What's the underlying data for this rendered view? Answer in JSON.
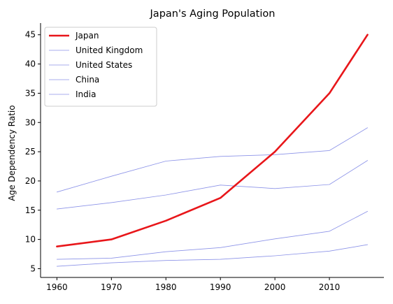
{
  "chart_data": {
    "type": "line",
    "title": "Japan's Aging Population",
    "xlabel": "",
    "ylabel": "Age Dependency Ratio",
    "x": [
      1960,
      1970,
      1980,
      1990,
      2000,
      2010,
      2017
    ],
    "xlim": [
      1957,
      2020
    ],
    "ylim": [
      3.5,
      47
    ],
    "xticks": [
      1960,
      1970,
      1980,
      1990,
      2000,
      2010
    ],
    "yticks": [
      5,
      10,
      15,
      20,
      25,
      30,
      35,
      40,
      45
    ],
    "grid": false,
    "legend": "top-left",
    "series": [
      {
        "name": "Japan",
        "color": "#e8161a",
        "emphasis": true,
        "values": [
          8.8,
          10.0,
          13.2,
          17.1,
          25.0,
          35.0,
          45.0
        ]
      },
      {
        "name": "United Kingdom",
        "color": "#8c93e8",
        "emphasis": false,
        "values": [
          18.1,
          20.8,
          23.4,
          24.2,
          24.5,
          25.2,
          29.1
        ]
      },
      {
        "name": "United States",
        "color": "#8c93e8",
        "emphasis": false,
        "values": [
          15.2,
          16.3,
          17.6,
          19.3,
          18.7,
          19.4,
          23.5
        ]
      },
      {
        "name": "China",
        "color": "#8c93e8",
        "emphasis": false,
        "values": [
          6.6,
          6.8,
          7.9,
          8.6,
          10.1,
          11.4,
          14.8
        ]
      },
      {
        "name": "India",
        "color": "#8c93e8",
        "emphasis": false,
        "values": [
          5.4,
          6.0,
          6.4,
          6.6,
          7.2,
          8.0,
          9.1
        ]
      }
    ]
  }
}
